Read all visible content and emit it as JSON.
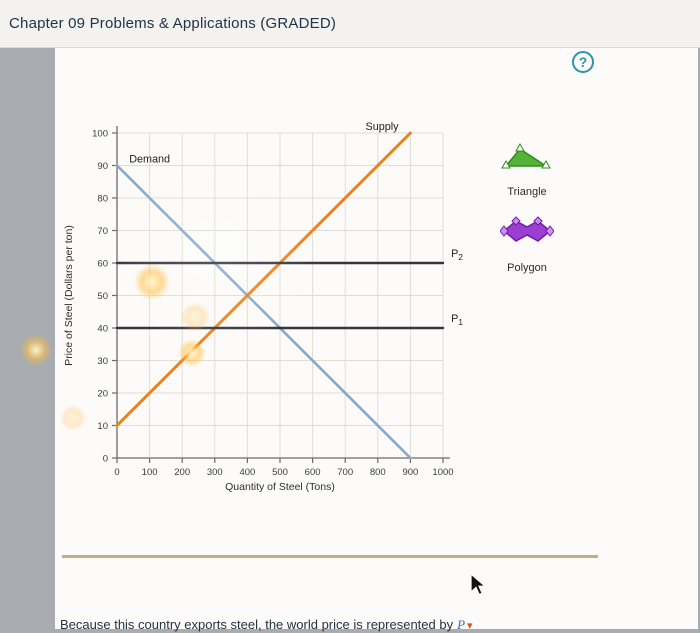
{
  "header": {
    "title": "Chapter 09 Problems & Applications (GRADED)"
  },
  "help": {
    "label": "?"
  },
  "chart_data": {
    "type": "line",
    "title": "",
    "xlabel": "Quantity of Steel (Tons)",
    "ylabel": "Price of Steel (Dollars per ton)",
    "xlim": [
      0,
      1000
    ],
    "ylim": [
      0,
      100
    ],
    "xticks": [
      0,
      100,
      200,
      300,
      400,
      500,
      600,
      700,
      800,
      900,
      1000
    ],
    "yticks": [
      0,
      10,
      20,
      30,
      40,
      50,
      60,
      70,
      80,
      90,
      100
    ],
    "grid": true,
    "series": [
      {
        "name": "Demand",
        "color": "#83a8cc",
        "width": 2.6,
        "points": [
          [
            0,
            90
          ],
          [
            900,
            0
          ]
        ]
      },
      {
        "name": "Supply",
        "color": "#e8831b",
        "width": 3.0,
        "points": [
          [
            0,
            10
          ],
          [
            900,
            100
          ]
        ]
      },
      {
        "name": "P2-line",
        "color": "#35353f",
        "width": 2.4,
        "points": [
          [
            0,
            60
          ],
          [
            1000,
            60
          ]
        ]
      },
      {
        "name": "P1-line",
        "color": "#35353f",
        "width": 2.4,
        "points": [
          [
            0,
            40
          ],
          [
            1000,
            40
          ]
        ]
      }
    ],
    "annotations": [
      {
        "text": "Supply",
        "x": 813,
        "y": 101,
        "anchor": "middle"
      },
      {
        "text": "Demand",
        "x": 100,
        "y": 91,
        "anchor": "middle"
      },
      {
        "text": "P",
        "sub": "2",
        "x": 1025,
        "y": 61.8,
        "anchor": "start"
      },
      {
        "text": "P",
        "sub": "1",
        "x": 1025,
        "y": 41.8,
        "anchor": "start"
      }
    ]
  },
  "tools": [
    {
      "id": "triangle",
      "label": "Triangle",
      "color": "#53b237"
    },
    {
      "id": "polygon",
      "label": "Polygon",
      "color": "#9b3fd1"
    }
  ],
  "footer": {
    "question_prefix": "Because this country exports steel, the world price is represented by",
    "dropdown_value": "P"
  }
}
